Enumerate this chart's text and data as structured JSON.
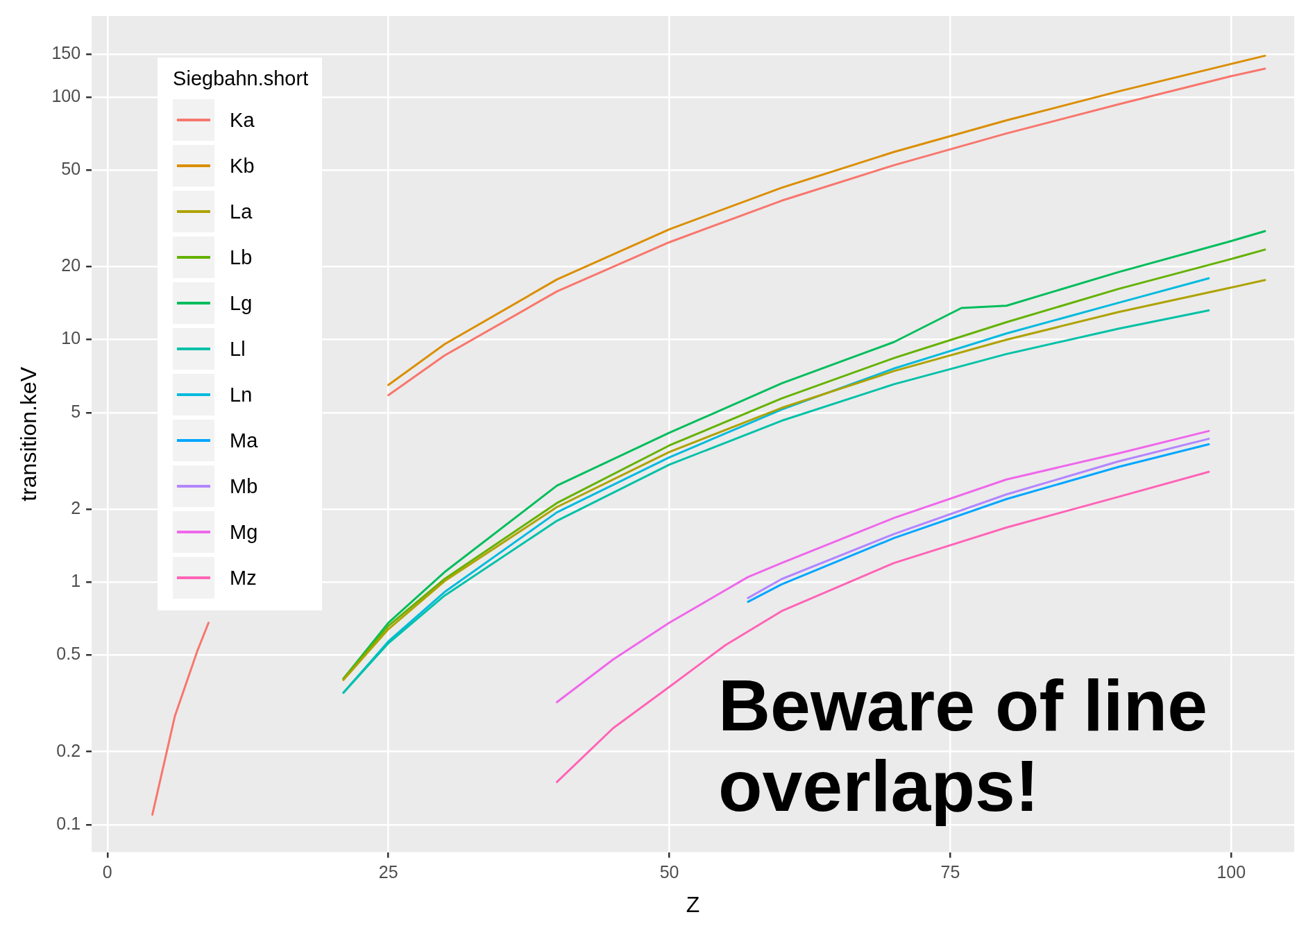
{
  "chart_data": {
    "type": "line",
    "xlabel": "Z",
    "ylabel": "transition.keV",
    "legend_title": "Siegbahn.short",
    "legend": "top left",
    "grid": true,
    "log": "y",
    "marker": "none",
    "line_style": "solid",
    "xlim": [
      -1.4,
      105.6
    ],
    "xticks": [
      0,
      25,
      50,
      75,
      100
    ],
    "ylim": [
      0.077,
      216
    ],
    "yticks": [
      0.1,
      0.2,
      0.5,
      1,
      2,
      5,
      10,
      20,
      50,
      100,
      150
    ],
    "annotations": [
      "Beware of line overlaps!"
    ],
    "series": [
      {
        "name": "Ka",
        "color": "#F8766D",
        "x": [
          4,
          6,
          8,
          9,
          12,
          15,
          20,
          25,
          30,
          40,
          50,
          60,
          70,
          80,
          90,
          100,
          103
        ],
        "values": [
          0.11,
          0.28,
          0.52,
          0.68,
          null,
          null,
          null,
          5.9,
          8.6,
          15.8,
          25.2,
          37.4,
          52.4,
          70.8,
          93.4,
          122,
          131
        ]
      },
      {
        "name": "Kb",
        "color": "#DB8E00",
        "x": [
          25,
          30,
          40,
          50,
          60,
          70,
          80,
          90,
          100,
          103
        ],
        "values": [
          6.5,
          9.57,
          17.7,
          28.5,
          42.3,
          59.4,
          80.2,
          105.6,
          137,
          148
        ]
      },
      {
        "name": "La",
        "color": "#AEA200",
        "x": [
          21,
          25,
          30,
          40,
          50,
          60,
          70,
          80,
          90,
          100,
          103
        ],
        "values": [
          0.395,
          0.64,
          1.01,
          2.04,
          3.44,
          5.23,
          7.42,
          9.99,
          13.0,
          16.4,
          17.6
        ]
      },
      {
        "name": "Lb",
        "color": "#64B200",
        "x": [
          21,
          25,
          30,
          40,
          50,
          60,
          70,
          80,
          90,
          100,
          103
        ],
        "values": [
          0.4,
          0.66,
          1.03,
          2.12,
          3.66,
          5.72,
          8.4,
          11.8,
          16.2,
          21.5,
          23.5
        ]
      },
      {
        "name": "Lg",
        "color": "#00BD5C",
        "x": [
          21,
          25,
          30,
          40,
          50,
          60,
          70,
          76,
          80,
          90,
          100,
          103
        ],
        "values": [
          0.4,
          0.68,
          1.1,
          2.5,
          4.13,
          6.6,
          9.78,
          13.5,
          13.8,
          19.0,
          25.5,
          28
        ]
      },
      {
        "name": "Ll",
        "color": "#00C1A7",
        "x": [
          21,
          25,
          30,
          40,
          50,
          60,
          70,
          80,
          90,
          98
        ],
        "values": [
          0.35,
          0.56,
          0.88,
          1.79,
          3.05,
          4.63,
          6.55,
          8.72,
          11.1,
          13.2
        ]
      },
      {
        "name": "Ln",
        "color": "#00BADE",
        "x": [
          21,
          25,
          30,
          40,
          50,
          60,
          70,
          80,
          90,
          98
        ],
        "values": [
          0.35,
          0.57,
          0.91,
          1.94,
          3.27,
          5.15,
          7.6,
          10.6,
          14.2,
          17.9
        ]
      },
      {
        "name": "Ma",
        "color": "#00A6FF",
        "x": [
          57,
          60,
          70,
          80,
          90,
          98
        ],
        "values": [
          0.83,
          0.98,
          1.52,
          2.2,
          2.99,
          3.7
        ]
      },
      {
        "name": "Mb",
        "color": "#B385FF",
        "x": [
          57,
          60,
          70,
          80,
          90,
          98
        ],
        "values": [
          0.86,
          1.03,
          1.58,
          2.3,
          3.15,
          3.9
        ]
      },
      {
        "name": "Mg",
        "color": "#EF67EB",
        "x": [
          40,
          45,
          50,
          57,
          60,
          70,
          80,
          90,
          98
        ],
        "values": [
          0.32,
          0.48,
          0.68,
          1.05,
          1.2,
          1.84,
          2.65,
          3.4,
          4.2
        ]
      },
      {
        "name": "Mz",
        "color": "#FF63B6",
        "x": [
          40,
          45,
          50,
          55,
          60,
          70,
          80,
          90,
          98
        ],
        "values": [
          0.15,
          0.25,
          0.37,
          0.55,
          0.76,
          1.2,
          1.68,
          2.25,
          2.85
        ]
      }
    ]
  }
}
